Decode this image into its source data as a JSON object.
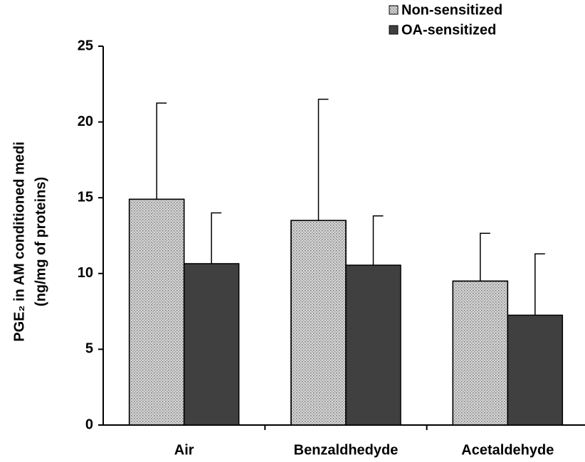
{
  "chart_data": {
    "type": "bar",
    "y_label": [
      "PGE₂ in AM conditioned medi",
      "(ng/mg of proteins)"
    ],
    "categories": [
      "Air",
      "Benzaldhedyde",
      "Acetaldehyde"
    ],
    "series": [
      {
        "name": "Non-sensitized",
        "color": "#d4d4d4",
        "pattern": "dotted",
        "values": [
          14.9,
          13.5,
          9.5
        ],
        "errors": [
          6.35,
          8.0,
          3.15
        ]
      },
      {
        "name": "OA-sensitized",
        "color": "#404040",
        "values": [
          10.65,
          10.55,
          7.25
        ],
        "errors": [
          3.35,
          3.25,
          4.05
        ]
      }
    ],
    "ylim": [
      0,
      25
    ],
    "yticks": [
      0,
      5,
      10,
      15,
      20,
      25
    ],
    "grid": false,
    "legend": "top-right"
  }
}
